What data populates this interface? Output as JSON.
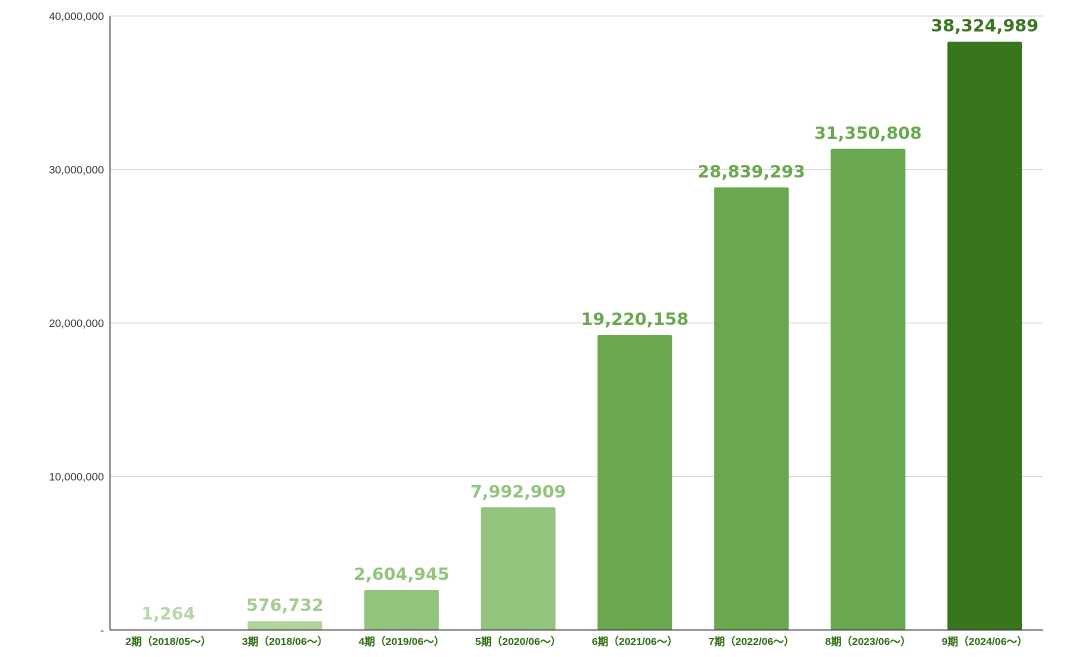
{
  "chart_data": {
    "type": "bar",
    "categories": [
      "2期（2018/05～）",
      "3期（2018/06～）",
      "4期（2019/06～）",
      "5期（2020/06～）",
      "6期（2021/06～）",
      "7期（2022/06～）",
      "8期（2023/06～）",
      "9期（2024/06～）"
    ],
    "values": [
      1264,
      576732,
      2604945,
      7992909,
      19220158,
      28839293,
      31350808,
      38324989
    ],
    "data_labels": [
      "1,264",
      "576,732",
      "2,604,945",
      "7,992,909",
      "19,220,158",
      "28,839,293",
      "31,350,808",
      "38,324,989"
    ],
    "bar_colors": [
      "#c5e0b4",
      "#b0d49c",
      "#93c47d",
      "#93c47d",
      "#6aa84f",
      "#6aa84f",
      "#6aa84f",
      "#38761d"
    ],
    "label_colors": [
      "#b6d7a8",
      "#a4cc8e",
      "#93c47d",
      "#93c47d",
      "#6aa84f",
      "#6aa84f",
      "#6aa84f",
      "#38761d"
    ],
    "yticks": [
      0,
      10000000,
      20000000,
      30000000,
      40000000
    ],
    "ytick_labels": [
      "-",
      "10,000,000",
      "20,000,000",
      "30,000,000",
      "40,000,000"
    ],
    "ylim": [
      0,
      40000000
    ],
    "grid": true,
    "title": "",
    "xlabel": "",
    "ylabel": ""
  }
}
